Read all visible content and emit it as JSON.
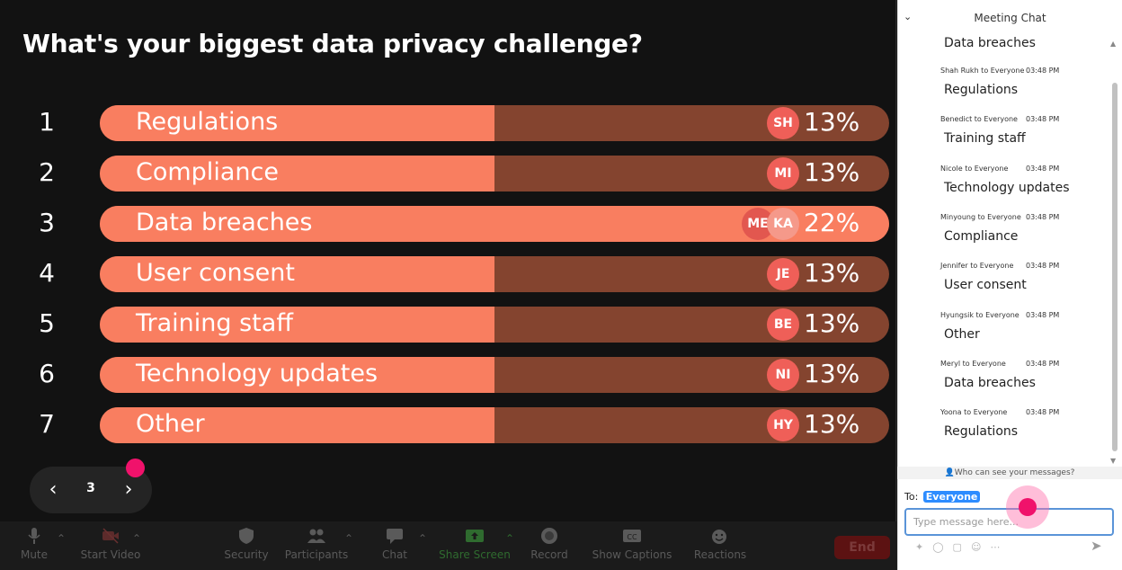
{
  "poll": {
    "question": "What's your biggest data privacy challenge?",
    "options": [
      {
        "num": "1",
        "label": "Regulations",
        "percent": "13%",
        "fill_fraction": 0.5,
        "avatars": [
          "SH"
        ]
      },
      {
        "num": "2",
        "label": "Compliance",
        "percent": "13%",
        "fill_fraction": 0.5,
        "avatars": [
          "MI"
        ]
      },
      {
        "num": "3",
        "label": "Data breaches",
        "percent": "22%",
        "fill_fraction": 1.0,
        "avatars": [
          "ME",
          "KA"
        ]
      },
      {
        "num": "4",
        "label": "User consent",
        "percent": "13%",
        "fill_fraction": 0.5,
        "avatars": [
          "JE"
        ]
      },
      {
        "num": "5",
        "label": "Training staff",
        "percent": "13%",
        "fill_fraction": 0.5,
        "avatars": [
          "BE"
        ]
      },
      {
        "num": "6",
        "label": "Technology updates",
        "percent": "13%",
        "fill_fraction": 0.5,
        "avatars": [
          "NI"
        ]
      },
      {
        "num": "7",
        "label": "Other",
        "percent": "13%",
        "fill_fraction": 0.5,
        "avatars": [
          "HY"
        ]
      }
    ],
    "colors": {
      "fill": "#f97e60",
      "track": "#84442f",
      "avatar": "#ef5f58"
    }
  },
  "pager": {
    "page": "3",
    "prev_icon": "chevron-left-icon",
    "next_icon": "chevron-right-icon"
  },
  "toolbar": {
    "mute": "Mute",
    "start_video": "Start Video",
    "security": "Security",
    "participants": "Participants",
    "chat": "Chat",
    "share_screen": "Share Screen",
    "record": "Record",
    "show_captions": "Show Captions",
    "reactions": "Reactions",
    "end": "End"
  },
  "chat": {
    "title": "Meeting Chat",
    "first_text": "Data breaches",
    "messages": [
      {
        "sender": "Shah Rukh to Everyone",
        "time": "03:48 PM",
        "text": "Regulations"
      },
      {
        "sender": "Benedict to Everyone",
        "time": "03:48 PM",
        "text": "Training staff"
      },
      {
        "sender": "Nicole to Everyone",
        "time": "03:48 PM",
        "text": "Technology updates"
      },
      {
        "sender": "Minyoung to Everyone",
        "time": "03:48 PM",
        "text": "Compliance"
      },
      {
        "sender": "Jennifer to Everyone",
        "time": "03:48 PM",
        "text": "User consent"
      },
      {
        "sender": "Hyungsik to Everyone",
        "time": "03:48 PM",
        "text": "Other"
      },
      {
        "sender": "Meryl to Everyone",
        "time": "03:48 PM",
        "text": "Data breaches"
      },
      {
        "sender": "Yoona to Everyone",
        "time": "03:48 PM",
        "text": "Regulations"
      }
    ],
    "who_can_see": "Who can see your messages?",
    "to_label": "To:",
    "to_target": "Everyone",
    "input_placeholder": "Type message here..."
  }
}
